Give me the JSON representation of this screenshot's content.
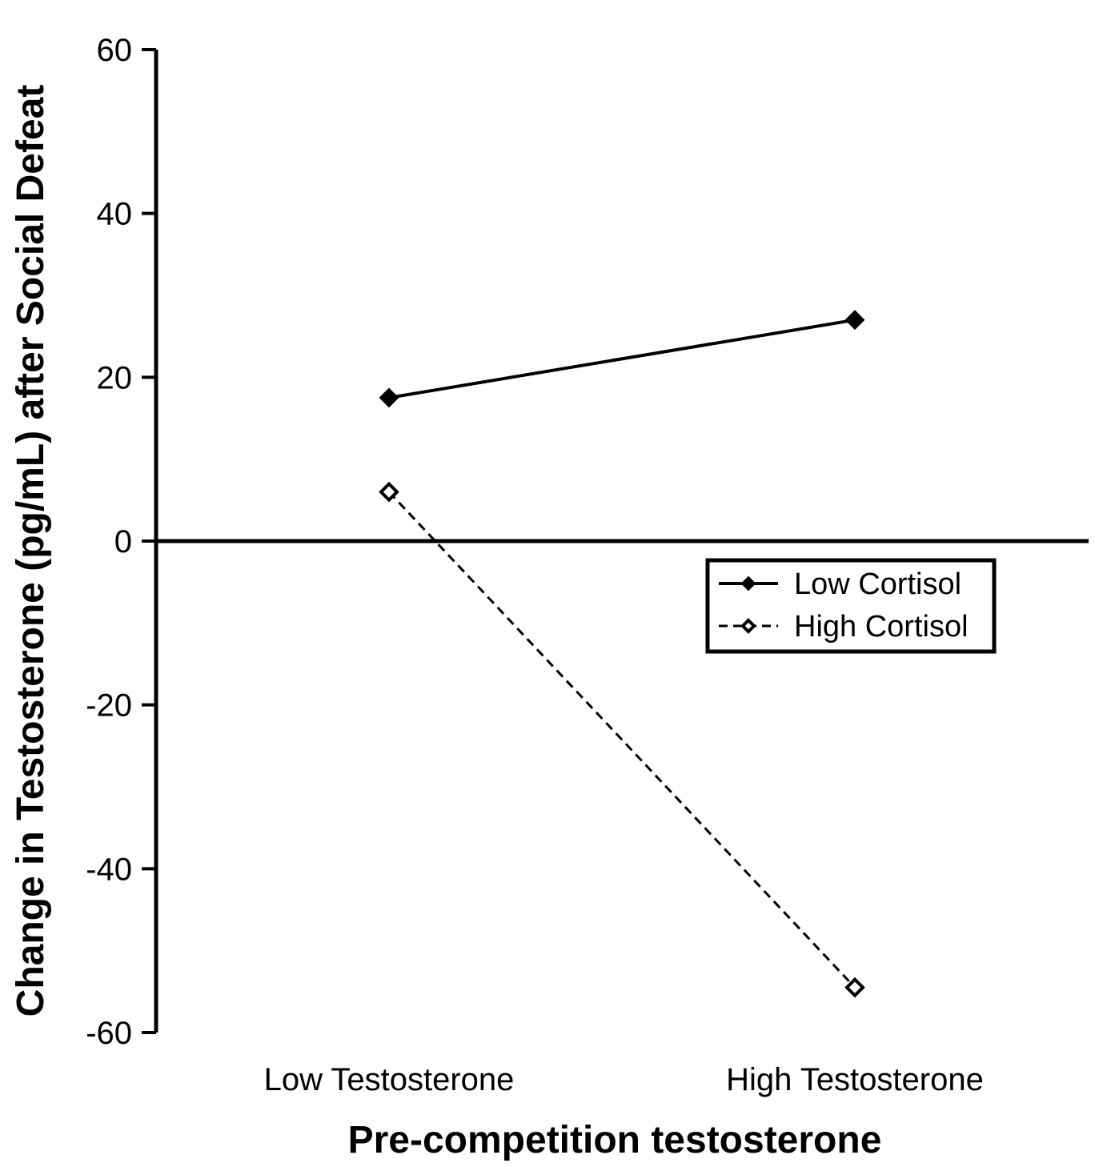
{
  "chart_data": {
    "type": "line",
    "title": "",
    "xlabel": "Pre-competition testosterone",
    "ylabel": "Change in Testosterone (pg/mL) after Social Defeat",
    "categories": [
      "Low Testosterone",
      "High Testosterone"
    ],
    "ylim": [
      -60,
      60
    ],
    "yticks": [
      60,
      40,
      20,
      0,
      -20,
      -40,
      -60
    ],
    "ytick_labels": [
      "60",
      "40",
      "20",
      "0",
      "-20",
      "-40",
      "-60"
    ],
    "grid": false,
    "zero_line": true,
    "legend_position": "right-center",
    "series": [
      {
        "name": "Low Cortisol",
        "values": [
          17.5,
          27
        ],
        "marker": "filled-diamond",
        "line_style": "solid",
        "color": "#000000"
      },
      {
        "name": "High Cortisol",
        "values": [
          6,
          -54.5
        ],
        "marker": "open-diamond",
        "line_style": "dashed",
        "color": "#000000"
      }
    ]
  }
}
